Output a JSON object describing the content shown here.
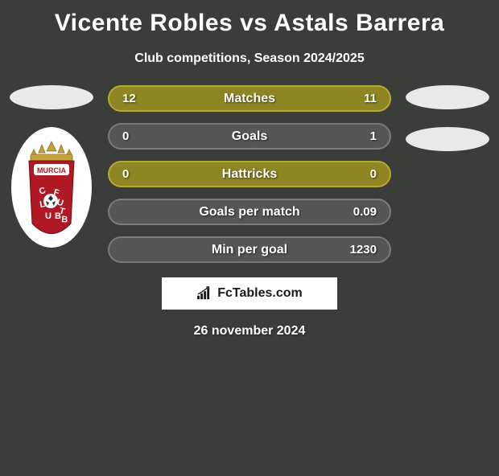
{
  "title": "Vicente Robles vs Astals Barrera",
  "subtitle": "Club competitions, Season 2024/2025",
  "player_left": {
    "has_photo": true,
    "has_club": true
  },
  "player_right": {
    "has_photo": true,
    "has_club": false
  },
  "stats": {
    "rows": [
      {
        "label": "Matches",
        "left": "12",
        "right": "11",
        "winner": "left"
      },
      {
        "label": "Goals",
        "left": "0",
        "right": "1",
        "winner": "right"
      },
      {
        "label": "Hattricks",
        "left": "0",
        "right": "0",
        "winner": "left"
      },
      {
        "label": "Goals per match",
        "left": "",
        "right": "0.09",
        "winner": "right"
      },
      {
        "label": "Min per goal",
        "left": "",
        "right": "1230",
        "winner": "right"
      }
    ],
    "colors": {
      "left_winner_bg": "#8e8623",
      "left_winner_border": "#b3aa33",
      "right_winner_bg": "#555752",
      "right_winner_border": "#7a7c77",
      "text": "#ffffff"
    }
  },
  "brand": {
    "text": "FcTables.com"
  },
  "date": "26 november 2024",
  "background_color": "#3a3d3a"
}
